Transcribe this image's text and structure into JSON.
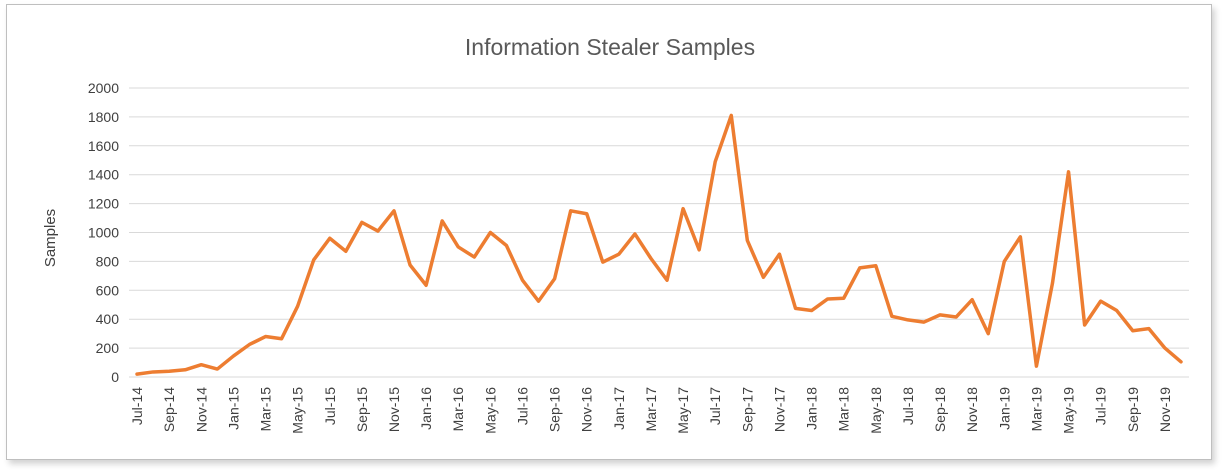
{
  "chart_data": {
    "type": "line",
    "title": "Information Stealer Samples",
    "xlabel": "",
    "ylabel": "Samples",
    "ylim": [
      0,
      2000
    ],
    "yticks": [
      0,
      200,
      400,
      600,
      800,
      1000,
      1200,
      1400,
      1600,
      1800,
      2000
    ],
    "grid": true,
    "legend": "none",
    "colors": {
      "line": "#ED7D31",
      "grid": "#D9D9D9",
      "text": "#404040",
      "title": "#595959"
    },
    "categories": [
      "Jul-14",
      "Aug-14",
      "Sep-14",
      "Oct-14",
      "Nov-14",
      "Dec-14",
      "Jan-15",
      "Feb-15",
      "Mar-15",
      "Apr-15",
      "May-15",
      "Jun-15",
      "Jul-15",
      "Aug-15",
      "Sep-15",
      "Oct-15",
      "Nov-15",
      "Dec-15",
      "Jan-16",
      "Feb-16",
      "Mar-16",
      "Apr-16",
      "May-16",
      "Jun-16",
      "Jul-16",
      "Aug-16",
      "Sep-16",
      "Oct-16",
      "Nov-16",
      "Dec-16",
      "Jan-17",
      "Feb-17",
      "Mar-17",
      "Apr-17",
      "May-17",
      "Jun-17",
      "Jul-17",
      "Aug-17",
      "Sep-17",
      "Oct-17",
      "Nov-17",
      "Dec-17",
      "Jan-18",
      "Feb-18",
      "Mar-18",
      "Apr-18",
      "May-18",
      "Jun-18",
      "Jul-18",
      "Aug-18",
      "Sep-18",
      "Oct-18",
      "Nov-18",
      "Dec-18",
      "Jan-19",
      "Feb-19",
      "Mar-19",
      "Apr-19",
      "May-19",
      "Jun-19",
      "Jul-19",
      "Aug-19",
      "Sep-19",
      "Oct-19",
      "Nov-19",
      "Dec-19"
    ],
    "tick_labels": [
      "Jul-14",
      "Sep-14",
      "Nov-14",
      "Jan-15",
      "Mar-15",
      "May-15",
      "Jul-15",
      "Sep-15",
      "Nov-15",
      "Jan-16",
      "Mar-16",
      "May-16",
      "Jul-16",
      "Sep-16",
      "Nov-16",
      "Jan-17",
      "Mar-17",
      "May-17",
      "Jul-17",
      "Sep-17",
      "Nov-17",
      "Jan-18",
      "Mar-18",
      "May-18",
      "Jul-18",
      "Sep-18",
      "Nov-18",
      "Jan-19",
      "Mar-19",
      "May-19",
      "Jul-19",
      "Sep-19",
      "Nov-19"
    ],
    "series": [
      {
        "name": "Information Stealer Samples",
        "values": [
          20,
          35,
          40,
          50,
          85,
          55,
          145,
          225,
          280,
          265,
          490,
          810,
          960,
          870,
          1070,
          1010,
          1150,
          775,
          635,
          1080,
          900,
          830,
          1000,
          910,
          670,
          525,
          680,
          1150,
          1130,
          795,
          850,
          990,
          820,
          670,
          1165,
          880,
          1490,
          1810,
          945,
          690,
          850,
          475,
          460,
          540,
          545,
          755,
          770,
          420,
          395,
          380,
          430,
          415,
          535,
          300,
          800,
          970,
          75,
          650,
          1420,
          360,
          525,
          460,
          320,
          335,
          200,
          105
        ]
      }
    ]
  }
}
